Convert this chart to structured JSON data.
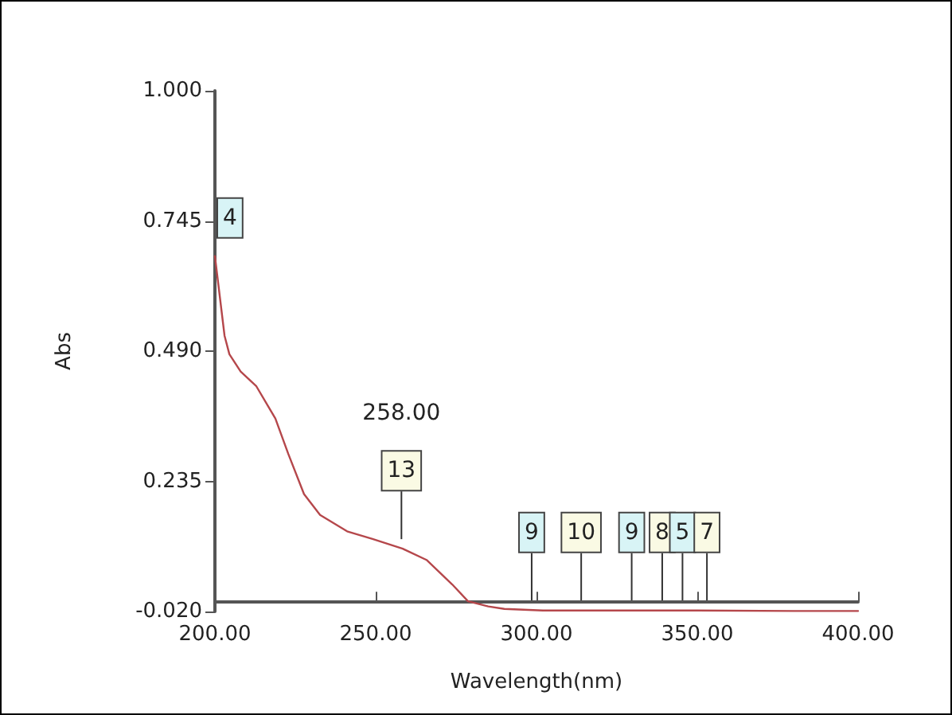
{
  "chart_data": {
    "type": "line",
    "xlabel": "Wavelength(nm)",
    "ylabel": "Abs",
    "xlim": [
      200,
      400
    ],
    "ylim": [
      -0.02,
      1.0
    ],
    "xticks": [
      {
        "value": 200,
        "label": "200.00"
      },
      {
        "value": 250,
        "label": "250.00"
      },
      {
        "value": 300,
        "label": "300.00"
      },
      {
        "value": 350,
        "label": "350.00"
      },
      {
        "value": 400,
        "label": "400.00"
      }
    ],
    "yticks": [
      {
        "value": -0.02,
        "label": "-0.020"
      },
      {
        "value": 0.235,
        "label": "0.235"
      },
      {
        "value": 0.49,
        "label": "0.490"
      },
      {
        "value": 0.745,
        "label": "0.745"
      },
      {
        "value": 1.0,
        "label": "1.000"
      }
    ],
    "grid": false,
    "marker": "none",
    "line_style": "solid",
    "series": [
      {
        "color": "#b5474b",
        "x": [
          200,
          203,
          204.5,
          208,
          212.9,
          218.8,
          222.8,
          227.7,
          232.7,
          241.1,
          249,
          258.4,
          265.8,
          273.8,
          278.7,
          285,
          290,
          302,
          320,
          350,
          380,
          400
        ],
        "values": [
          0.676,
          0.52,
          0.484,
          0.45,
          0.421,
          0.358,
          0.289,
          0.21,
          0.169,
          0.137,
          0.122,
          0.103,
          0.081,
          0.033,
          0.0,
          -0.01,
          -0.015,
          -0.018,
          -0.018,
          -0.018,
          -0.019,
          -0.019
        ]
      }
    ],
    "annotations": [
      {
        "text": "4",
        "x": 200,
        "y": 0.676
      },
      {
        "text": "13",
        "x": 258,
        "y": 0.103
      },
      "258.00",
      {
        "text": "9",
        "x": 298.5,
        "y": -0.018
      },
      {
        "text": "10",
        "x": 313.9,
        "y": -0.018
      },
      {
        "text": "9",
        "x": 329.6,
        "y": -0.018
      },
      {
        "text": "8",
        "x": 339.1,
        "y": -0.018
      },
      {
        "text": "5",
        "x": 345.4,
        "y": -0.018
      },
      {
        "text": "7",
        "x": 353,
        "y": -0.018
      }
    ]
  }
}
